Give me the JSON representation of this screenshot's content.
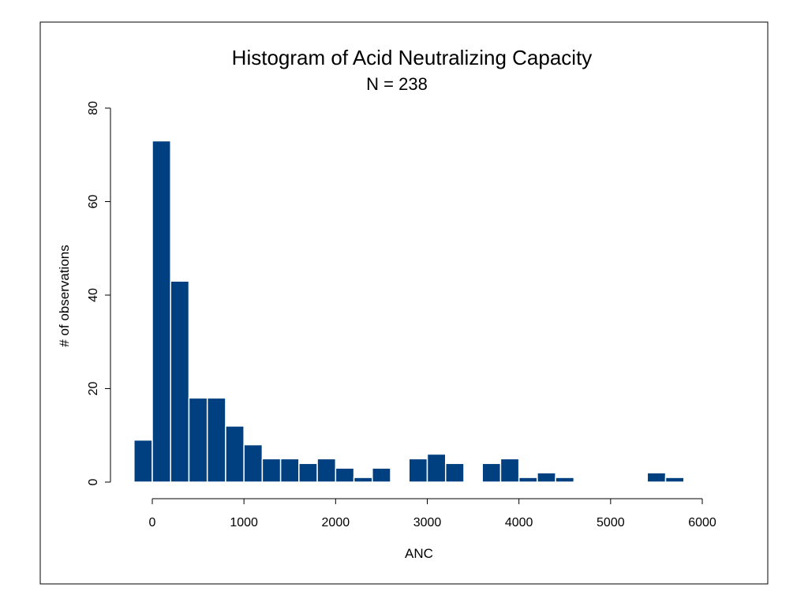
{
  "chart_data": {
    "type": "bar",
    "title": "Histogram of Acid Neutralizing Capacity",
    "subtitle": "N = 238",
    "xlabel": "ANC",
    "ylabel": "# of observations",
    "xlim": [
      -200,
      6000
    ],
    "ylim": [
      0,
      80
    ],
    "x_ticks": [
      0,
      1000,
      2000,
      3000,
      4000,
      5000,
      6000
    ],
    "y_ticks": [
      0,
      20,
      40,
      60,
      80
    ],
    "bin_width": 200,
    "bins": [
      {
        "start": -200,
        "end": 0,
        "count": 9
      },
      {
        "start": 0,
        "end": 200,
        "count": 73
      },
      {
        "start": 200,
        "end": 400,
        "count": 43
      },
      {
        "start": 400,
        "end": 600,
        "count": 18
      },
      {
        "start": 600,
        "end": 800,
        "count": 18
      },
      {
        "start": 800,
        "end": 1000,
        "count": 12
      },
      {
        "start": 1000,
        "end": 1200,
        "count": 8
      },
      {
        "start": 1200,
        "end": 1400,
        "count": 5
      },
      {
        "start": 1400,
        "end": 1600,
        "count": 5
      },
      {
        "start": 1600,
        "end": 1800,
        "count": 4
      },
      {
        "start": 1800,
        "end": 2000,
        "count": 5
      },
      {
        "start": 2000,
        "end": 2200,
        "count": 3
      },
      {
        "start": 2200,
        "end": 2400,
        "count": 1
      },
      {
        "start": 2400,
        "end": 2600,
        "count": 3
      },
      {
        "start": 2600,
        "end": 2800,
        "count": 0
      },
      {
        "start": 2800,
        "end": 3000,
        "count": 5
      },
      {
        "start": 3000,
        "end": 3200,
        "count": 6
      },
      {
        "start": 3200,
        "end": 3400,
        "count": 4
      },
      {
        "start": 3400,
        "end": 3600,
        "count": 0
      },
      {
        "start": 3600,
        "end": 3800,
        "count": 4
      },
      {
        "start": 3800,
        "end": 4000,
        "count": 5
      },
      {
        "start": 4000,
        "end": 4200,
        "count": 1
      },
      {
        "start": 4200,
        "end": 4400,
        "count": 2
      },
      {
        "start": 4400,
        "end": 4600,
        "count": 1
      },
      {
        "start": 4600,
        "end": 4800,
        "count": 0
      },
      {
        "start": 4800,
        "end": 5000,
        "count": 0
      },
      {
        "start": 5000,
        "end": 5200,
        "count": 0
      },
      {
        "start": 5200,
        "end": 5400,
        "count": 0
      },
      {
        "start": 5400,
        "end": 5600,
        "count": 2
      },
      {
        "start": 5600,
        "end": 5800,
        "count": 1
      }
    ],
    "bar_color": "#003f80",
    "bar_edge_color": "#ffffff",
    "grid": false,
    "legend": "none"
  }
}
